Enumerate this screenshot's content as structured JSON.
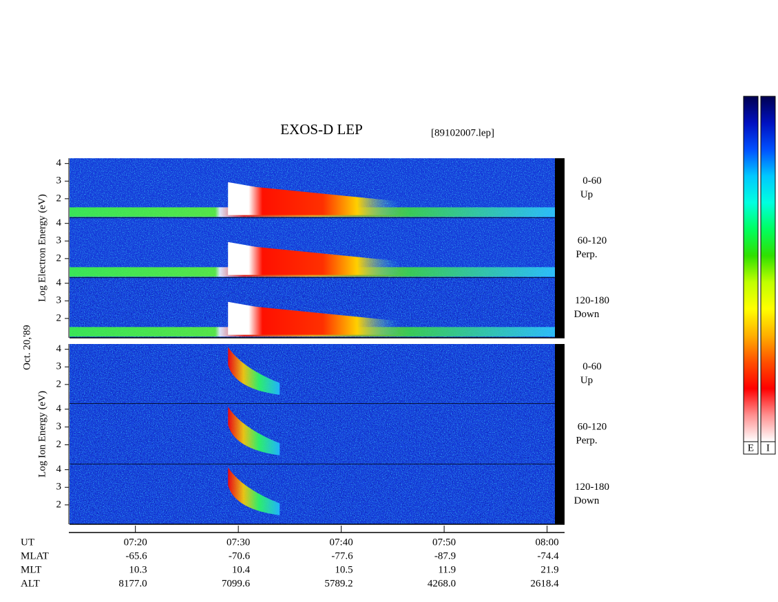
{
  "chart_data": {
    "type": "spectrogram",
    "title": "EXOS-D LEP",
    "subtitle": "[89102007.lep]",
    "date_label": "Oct. 20,'89",
    "groups": [
      {
        "ylabel": "Log Electron Energy (eV)",
        "species": "electron",
        "panels": [
          {
            "label": [
              "0-60",
              "Up"
            ]
          },
          {
            "label": [
              "60-120",
              "Perp."
            ]
          },
          {
            "label": [
              "120-180",
              "Down"
            ]
          }
        ]
      },
      {
        "ylabel": "Log Ion Energy (eV)",
        "species": "ion",
        "panels": [
          {
            "label": [
              "0-60",
              "Up"
            ]
          },
          {
            "label": [
              "60-120",
              "Perp."
            ]
          },
          {
            "label": [
              "120-180",
              "Down"
            ]
          }
        ]
      }
    ],
    "ylim": [
      0.9,
      4.3
    ],
    "yticks": [
      2,
      3,
      4
    ],
    "xlim": [
      13.6,
      61.7
    ],
    "xticks": [
      {
        "value": 20,
        "label": "07:20"
      },
      {
        "value": 30,
        "label": "07:30"
      },
      {
        "value": 40,
        "label": "07:40"
      },
      {
        "value": 50,
        "label": "07:50"
      },
      {
        "value": 60,
        "label": "08:00"
      }
    ],
    "xlabel": "UT",
    "orbit": [
      {
        "name": "MLAT",
        "values": [
          "-65.6",
          "-70.6",
          "-77.6",
          "-87.9",
          "-74.4"
        ]
      },
      {
        "name": "MLT",
        "values": [
          "10.3",
          "10.4",
          "10.5",
          "11.9",
          "21.9"
        ]
      },
      {
        "name": "ALT",
        "values": [
          "8177.0",
          "7099.6",
          "5789.2",
          "4268.0",
          "2618.4"
        ]
      }
    ],
    "colorbars": [
      "E",
      "I"
    ],
    "colormap": [
      "#000050",
      "#0010c0",
      "#0050ff",
      "#00c8ff",
      "#00ffe0",
      "#00ff60",
      "#30e000",
      "#c0ff00",
      "#ffff00",
      "#ffb000",
      "#ff5000",
      "#ff0000",
      "#ff9090",
      "#ffffff"
    ]
  }
}
